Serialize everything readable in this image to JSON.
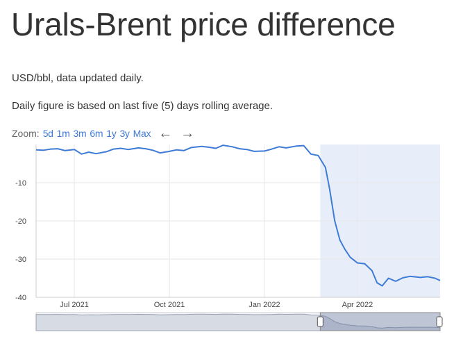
{
  "header": {
    "title": "Urals-Brent price difference",
    "subtitle": "USD/bbl, data updated daily.",
    "note": "Daily figure is based on last five (5) days rolling average."
  },
  "zoom": {
    "label": "Zoom:",
    "options": [
      "5d",
      "1m",
      "3m",
      "6m",
      "1y",
      "3y",
      "Max"
    ],
    "back_icon": "arrow-left-icon",
    "forward_icon": "arrow-right-icon"
  },
  "colors": {
    "line": "#3e7bd6",
    "highlight": "#e8eef9",
    "grid": "#e6e6e6",
    "link": "#3e7bd6"
  },
  "chart_data": {
    "type": "line",
    "title": "",
    "xlabel": "",
    "ylabel": "",
    "x_tick_labels": [
      "Jul 2021",
      "Oct 2021",
      "Jan 2022",
      "Apr 2022"
    ],
    "y_tick_labels": [
      "-10",
      "-20",
      "-30",
      "-40"
    ],
    "ylim": [
      -40,
      0
    ],
    "xlim": [
      "2021-05-25",
      "2022-06-20"
    ],
    "grid": true,
    "legend": "none",
    "highlight_start": "2022-02-24",
    "series": [
      {
        "x": [
          "2021-05-25",
          "2021-06-01",
          "2021-06-08",
          "2021-06-15",
          "2021-06-22",
          "2021-07-01",
          "2021-07-08",
          "2021-07-15",
          "2021-07-22",
          "2021-08-01",
          "2021-08-08",
          "2021-08-15",
          "2021-08-22",
          "2021-09-01",
          "2021-09-08",
          "2021-09-15",
          "2021-09-22",
          "2021-10-01",
          "2021-10-08",
          "2021-10-15",
          "2021-10-22",
          "2021-11-01",
          "2021-11-08",
          "2021-11-15",
          "2021-11-22",
          "2021-12-01",
          "2021-12-08",
          "2021-12-15",
          "2021-12-22",
          "2022-01-01",
          "2022-01-08",
          "2022-01-15",
          "2022-01-22",
          "2022-02-01",
          "2022-02-08",
          "2022-02-15",
          "2022-02-22",
          "2022-03-01",
          "2022-03-05",
          "2022-03-10",
          "2022-03-15",
          "2022-03-20",
          "2022-03-25",
          "2022-04-01",
          "2022-04-08",
          "2022-04-15",
          "2022-04-20",
          "2022-04-25",
          "2022-05-01",
          "2022-05-08",
          "2022-05-15",
          "2022-05-22",
          "2022-06-01",
          "2022-06-08",
          "2022-06-15",
          "2022-06-20"
        ],
        "values": [
          -1.4,
          -1.5,
          -1.2,
          -1.1,
          -1.6,
          -1.3,
          -2.5,
          -2.0,
          -2.4,
          -1.9,
          -1.2,
          -1.0,
          -1.3,
          -0.9,
          -1.1,
          -1.5,
          -2.2,
          -1.8,
          -1.4,
          -1.6,
          -0.8,
          -0.5,
          -0.7,
          -1.0,
          -0.2,
          -0.6,
          -1.1,
          -1.3,
          -1.8,
          -1.7,
          -1.2,
          -0.6,
          -0.9,
          -0.4,
          -0.3,
          -2.5,
          -2.9,
          -6.0,
          -11.5,
          -20.0,
          -25.0,
          -27.5,
          -29.5,
          -31.0,
          -31.2,
          -33.0,
          -36.2,
          -37.0,
          -35.0,
          -35.8,
          -34.9,
          -34.5,
          -34.8,
          -34.6,
          -35.0,
          -35.6
        ]
      }
    ]
  }
}
